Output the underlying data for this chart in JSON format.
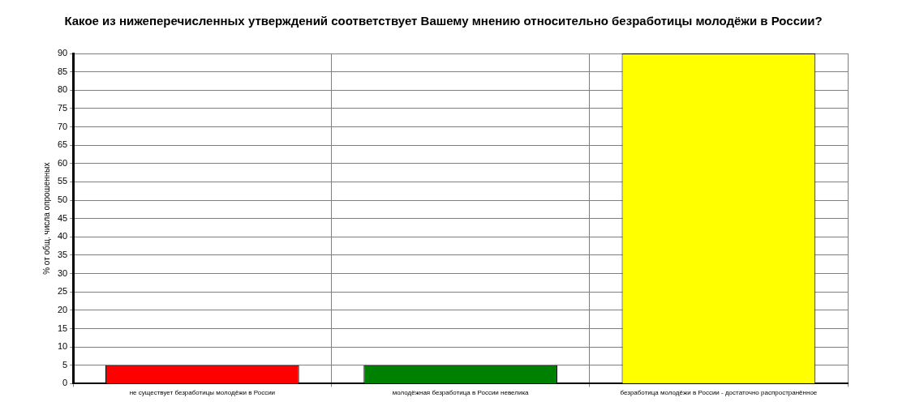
{
  "chart_data": {
    "type": "bar",
    "title": "Какое из нижеперечисленных утверждений соответствует Вашему мнению относительно безработицы молодёжи в России?",
    "ylabel": "% от общ. числа опрошенных",
    "categories": [
      "не существует безработицы молодёжи в России",
      "молодёжная безработица в России невелика",
      "безработица молодёжи в России - достаточно распространённое"
    ],
    "values": [
      5,
      5,
      90
    ],
    "colors": [
      "#ff0000",
      "#008000",
      "#ffff00"
    ],
    "ylim": [
      0,
      90
    ],
    "yticks": [
      0,
      5,
      10,
      15,
      20,
      25,
      30,
      35,
      40,
      45,
      50,
      55,
      60,
      65,
      70,
      75,
      80,
      85,
      90
    ],
    "grid": true,
    "legend": false
  }
}
